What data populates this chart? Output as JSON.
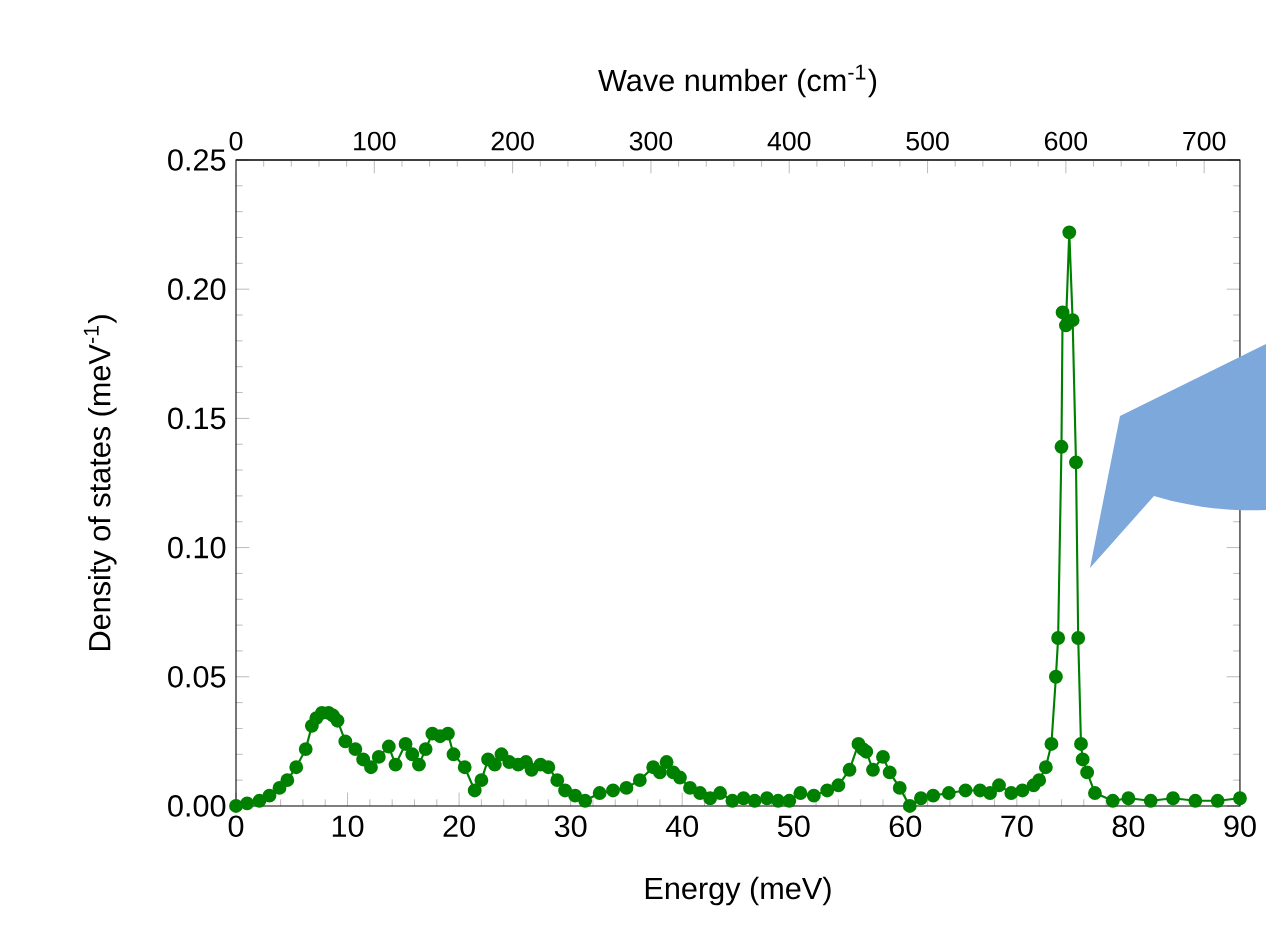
{
  "chart_data": {
    "type": "line",
    "xlabel": "Energy (meV)",
    "ylabel": "Density of states (meV$^{-1}$)",
    "x2label": "Wave number (cm$^{-1}$)",
    "xlim": [
      0,
      90
    ],
    "xticks": [
      0,
      10,
      20,
      30,
      40,
      50,
      60,
      70,
      80,
      90
    ],
    "ylim": [
      0,
      0.25
    ],
    "yticks": [
      {
        "value": 0,
        "label": "0.00"
      },
      {
        "value": 0.05,
        "label": "0.05"
      },
      {
        "value": 0.1,
        "label": "0.10"
      },
      {
        "value": 0.15,
        "label": "0.15"
      },
      {
        "value": 0.2,
        "label": "0.20"
      },
      {
        "value": 0.25,
        "label": "0.25"
      }
    ],
    "x2lim": [
      0,
      725.9
    ],
    "x2ticks": [
      0,
      100,
      200,
      300,
      400,
      500,
      600,
      700
    ],
    "marker": "circle",
    "line_style": "solid",
    "grid": false,
    "series": [
      {
        "color": "#008000",
        "x": [
          0,
          1,
          2.1,
          3.0,
          3.9,
          4.6,
          5.4,
          6.25,
          6.8,
          7.2,
          7.7,
          8.3,
          8.7,
          9.1,
          9.8,
          10.7,
          11.4,
          12.1,
          12.8,
          13.7,
          14.3,
          15.2,
          15.8,
          16.4,
          17.0,
          17.6,
          18.3,
          19.0,
          19.5,
          20.5,
          21.4,
          22.0,
          22.6,
          23.2,
          23.8,
          24.5,
          25.3,
          26.0,
          26.5,
          27.3,
          28.0,
          28.8,
          29.5,
          30.4,
          31.3,
          32.6,
          33.8,
          35.0,
          36.2,
          37.4,
          38.0,
          38.6,
          39.2,
          39.8,
          40.7,
          41.6,
          42.5,
          43.4,
          44.5,
          45.5,
          46.5,
          47.6,
          48.6,
          49.6,
          50.6,
          51.8,
          53.0,
          54.0,
          55.0,
          55.8,
          56.2,
          56.5,
          57.1,
          58.0,
          58.6,
          59.5,
          60.4,
          61.4,
          62.5,
          63.9,
          65.4,
          66.7,
          67.6,
          68.4,
          69.5,
          70.5,
          71.5,
          72.0,
          72.6,
          73.1,
          73.5,
          73.7,
          74.0,
          74.1,
          74.4,
          74.7,
          75.0,
          75.3,
          75.5,
          75.75,
          75.9,
          76.3,
          77.0,
          78.6,
          80,
          82,
          84,
          86,
          88,
          90
        ],
        "values": [
          0,
          0.001,
          0.002,
          0.004,
          0.007,
          0.01,
          0.015,
          0.022,
          0.031,
          0.034,
          0.036,
          0.036,
          0.035,
          0.033,
          0.025,
          0.022,
          0.018,
          0.015,
          0.019,
          0.023,
          0.016,
          0.024,
          0.02,
          0.016,
          0.022,
          0.028,
          0.027,
          0.028,
          0.02,
          0.015,
          0.006,
          0.01,
          0.018,
          0.016,
          0.02,
          0.017,
          0.016,
          0.017,
          0.014,
          0.016,
          0.015,
          0.01,
          0.006,
          0.004,
          0.002,
          0.005,
          0.006,
          0.007,
          0.01,
          0.015,
          0.013,
          0.017,
          0.013,
          0.011,
          0.007,
          0.005,
          0.003,
          0.005,
          0.002,
          0.003,
          0.002,
          0.003,
          0.002,
          0.002,
          0.005,
          0.004,
          0.006,
          0.008,
          0.014,
          0.024,
          0.022,
          0.021,
          0.014,
          0.019,
          0.013,
          0.007,
          0.0,
          0.003,
          0.004,
          0.005,
          0.006,
          0.006,
          0.005,
          0.008,
          0.005,
          0.006,
          0.008,
          0.01,
          0.015,
          0.024,
          0.05,
          0.065,
          0.139,
          0.191,
          0.186,
          0.222,
          0.188,
          0.133,
          0.065,
          0.024,
          0.018,
          0.013,
          0.005,
          0.002,
          0.003,
          0.002,
          0.003,
          0.002,
          0.002,
          0.003
        ]
      }
    ]
  }
}
